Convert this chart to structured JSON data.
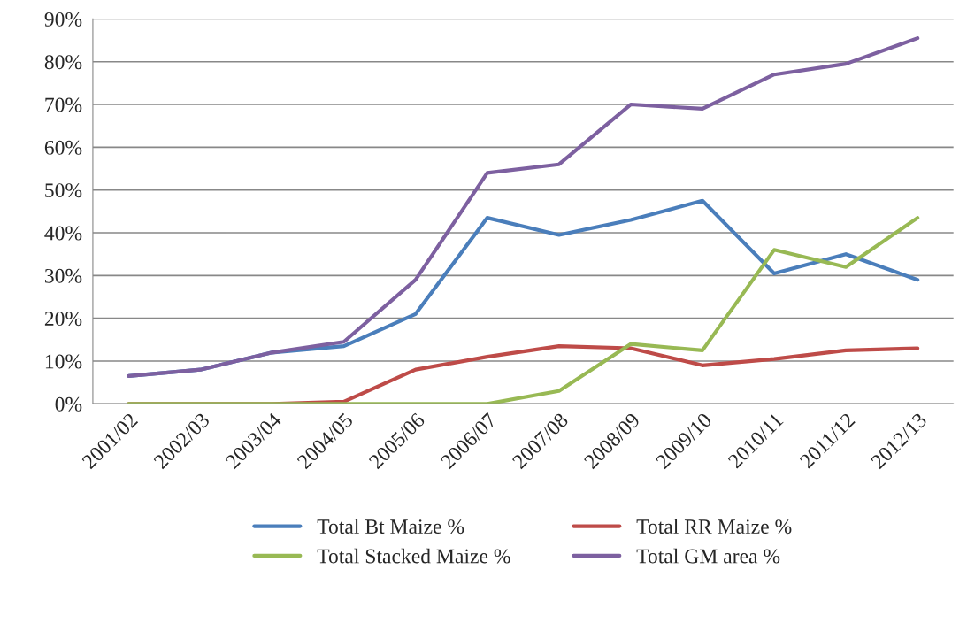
{
  "chart_data": {
    "type": "line",
    "categories": [
      "2001/02",
      "2002/03",
      "2003/04",
      "2004/05",
      "2005/06",
      "2006/07",
      "2007/08",
      "2008/09",
      "2009/10",
      "2010/11",
      "2011/12",
      "2012/13"
    ],
    "series": [
      {
        "name": "Total Bt Maize %",
        "color": "#4a7ebb",
        "values": [
          6.5,
          8,
          12,
          13.5,
          21,
          43.5,
          39.5,
          43,
          47.5,
          30.5,
          35,
          29
        ]
      },
      {
        "name": "Total RR Maize %",
        "color": "#be4b48",
        "values": [
          0,
          0,
          0,
          0.5,
          8,
          11,
          13.5,
          13,
          9,
          10.5,
          12.5,
          13
        ]
      },
      {
        "name": "Total Stacked Maize %",
        "color": "#98b954",
        "values": [
          0,
          0,
          0,
          0,
          0,
          0,
          3,
          14,
          12.5,
          36,
          32,
          43.5
        ]
      },
      {
        "name": "Total GM area %",
        "color": "#7d60a0",
        "values": [
          6.5,
          8,
          12,
          14.5,
          29,
          54,
          56,
          70,
          69,
          77,
          79.5,
          85.5
        ]
      }
    ],
    "ylim": [
      0,
      90
    ],
    "yticks": [
      {
        "value": 0,
        "label": "0%"
      },
      {
        "value": 10,
        "label": "10%"
      },
      {
        "value": 20,
        "label": "20%"
      },
      {
        "value": 30,
        "label": "30%"
      },
      {
        "value": 40,
        "label": "40%"
      },
      {
        "value": 50,
        "label": "50%"
      },
      {
        "value": 60,
        "label": "60%"
      },
      {
        "value": 70,
        "label": "70%"
      },
      {
        "value": 80,
        "label": "80%"
      },
      {
        "value": 90,
        "label": "90%"
      }
    ],
    "grid": "y",
    "legend": "bottom",
    "marker": "none",
    "line_style": "solid"
  }
}
